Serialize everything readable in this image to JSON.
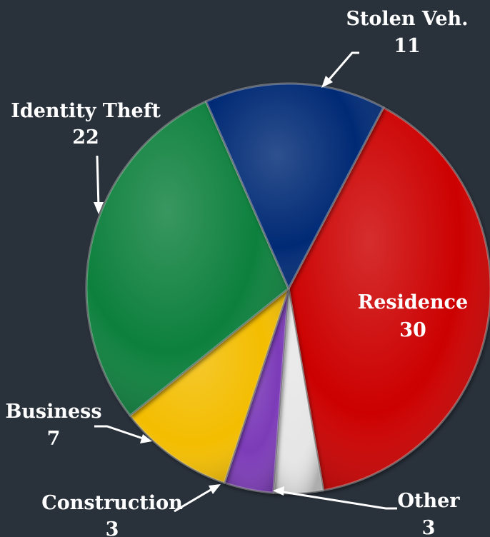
{
  "chart_data": {
    "type": "pie",
    "slices": [
      {
        "label": "Residence",
        "value": 30,
        "color": "#cc0000"
      },
      {
        "label": "Other",
        "value": 3,
        "color": "#e6e6e6"
      },
      {
        "label": "Construction",
        "value": 3,
        "color": "#7b3bb8"
      },
      {
        "label": "Business",
        "value": 7,
        "color": "#f3bd06"
      },
      {
        "label": "Identity Theft",
        "value": 22,
        "color": "#08803c"
      },
      {
        "label": "Stolen Veh.",
        "value": 11,
        "color": "#032a75"
      }
    ],
    "legend": "none",
    "background": "#29313b"
  }
}
